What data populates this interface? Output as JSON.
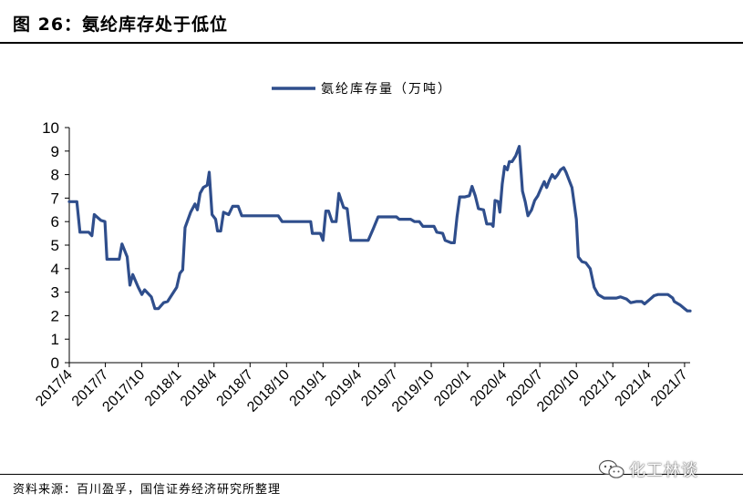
{
  "figure": {
    "title": "图 26：氨纶库存处于低位",
    "source": "资料来源：百川盈孚，国信证券经济研究所整理",
    "watermark_text": "化工林谈",
    "watermark_icon": "wechat-icon"
  },
  "chart_data": {
    "type": "line",
    "title": "",
    "xlabel": "",
    "ylabel": "",
    "ylim": [
      0,
      10
    ],
    "yticks": [
      "0",
      "1",
      "2",
      "3",
      "4",
      "5",
      "6",
      "7",
      "8",
      "9",
      "10"
    ],
    "xticks": [
      "2017/4",
      "2017/7",
      "2017/10",
      "2018/1",
      "2018/4",
      "2018/7",
      "2018/10",
      "2019/1",
      "2019/4",
      "2019/7",
      "2019/10",
      "2020/1",
      "2020/4",
      "2020/7",
      "2020/10",
      "2021/1",
      "2021/4",
      "2021/7"
    ],
    "grid": false,
    "legend_position": "top-center",
    "color": "#2f4e8c",
    "series": [
      {
        "name": "氨纶库存量（万吨）",
        "points": [
          [
            "2017-04-01",
            6.85
          ],
          [
            "2017-04-20",
            6.85
          ],
          [
            "2017-04-28",
            5.55
          ],
          [
            "2017-05-20",
            5.55
          ],
          [
            "2017-05-28",
            5.4
          ],
          [
            "2017-06-03",
            6.3
          ],
          [
            "2017-06-20",
            6.05
          ],
          [
            "2017-06-30",
            6.0
          ],
          [
            "2017-07-05",
            4.4
          ],
          [
            "2017-07-25",
            4.4
          ],
          [
            "2017-08-05",
            4.4
          ],
          [
            "2017-08-12",
            5.05
          ],
          [
            "2017-08-25",
            4.5
          ],
          [
            "2017-09-01",
            3.3
          ],
          [
            "2017-09-08",
            3.75
          ],
          [
            "2017-09-22",
            3.2
          ],
          [
            "2017-10-01",
            2.9
          ],
          [
            "2017-10-08",
            3.1
          ],
          [
            "2017-10-25",
            2.8
          ],
          [
            "2017-11-03",
            2.3
          ],
          [
            "2017-11-12",
            2.3
          ],
          [
            "2017-11-25",
            2.55
          ],
          [
            "2017-12-05",
            2.6
          ],
          [
            "2017-12-20",
            3.0
          ],
          [
            "2017-12-28",
            3.2
          ],
          [
            "2018-01-05",
            3.8
          ],
          [
            "2018-01-12",
            3.95
          ],
          [
            "2018-01-18",
            5.75
          ],
          [
            "2018-02-01",
            6.4
          ],
          [
            "2018-02-12",
            6.75
          ],
          [
            "2018-02-18",
            6.5
          ],
          [
            "2018-02-25",
            7.2
          ],
          [
            "2018-03-05",
            7.45
          ],
          [
            "2018-03-15",
            7.55
          ],
          [
            "2018-03-20",
            8.1
          ],
          [
            "2018-03-27",
            6.3
          ],
          [
            "2018-04-05",
            6.1
          ],
          [
            "2018-04-10",
            5.6
          ],
          [
            "2018-04-18",
            5.6
          ],
          [
            "2018-04-25",
            6.4
          ],
          [
            "2018-05-08",
            6.3
          ],
          [
            "2018-05-18",
            6.65
          ],
          [
            "2018-06-01",
            6.65
          ],
          [
            "2018-06-10",
            6.25
          ],
          [
            "2018-07-01",
            6.25
          ],
          [
            "2018-08-01",
            6.25
          ],
          [
            "2018-09-10",
            6.25
          ],
          [
            "2018-09-20",
            6.0
          ],
          [
            "2018-10-15",
            6.0
          ],
          [
            "2018-11-20",
            6.0
          ],
          [
            "2018-12-01",
            6.0
          ],
          [
            "2018-12-05",
            5.5
          ],
          [
            "2018-12-25",
            5.5
          ],
          [
            "2019-01-01",
            5.2
          ],
          [
            "2019-01-08",
            6.45
          ],
          [
            "2019-01-15",
            6.45
          ],
          [
            "2019-01-24",
            6.0
          ],
          [
            "2019-02-03",
            6.0
          ],
          [
            "2019-02-10",
            7.2
          ],
          [
            "2019-02-22",
            6.6
          ],
          [
            "2019-03-03",
            6.55
          ],
          [
            "2019-03-12",
            5.2
          ],
          [
            "2019-04-20",
            5.2
          ],
          [
            "2019-04-25",
            5.2
          ],
          [
            "2019-05-08",
            5.7
          ],
          [
            "2019-05-20",
            6.2
          ],
          [
            "2019-06-05",
            6.2
          ],
          [
            "2019-06-25",
            6.2
          ],
          [
            "2019-07-05",
            6.2
          ],
          [
            "2019-07-12",
            6.1
          ],
          [
            "2019-07-31",
            6.1
          ],
          [
            "2019-08-10",
            6.1
          ],
          [
            "2019-08-20",
            6.0
          ],
          [
            "2019-09-01",
            6.0
          ],
          [
            "2019-09-10",
            5.8
          ],
          [
            "2019-10-08",
            5.8
          ],
          [
            "2019-10-15",
            5.55
          ],
          [
            "2019-10-30",
            5.5
          ],
          [
            "2019-11-05",
            5.2
          ],
          [
            "2019-11-20",
            5.1
          ],
          [
            "2019-11-28",
            5.1
          ],
          [
            "2019-12-05",
            6.2
          ],
          [
            "2019-12-12",
            7.05
          ],
          [
            "2019-12-25",
            7.05
          ],
          [
            "2020-01-05",
            7.1
          ],
          [
            "2020-01-12",
            7.5
          ],
          [
            "2020-01-20",
            7.1
          ],
          [
            "2020-01-28",
            6.55
          ],
          [
            "2020-02-10",
            6.5
          ],
          [
            "2020-02-18",
            5.9
          ],
          [
            "2020-03-01",
            5.9
          ],
          [
            "2020-03-05",
            5.8
          ],
          [
            "2020-03-10",
            6.9
          ],
          [
            "2020-03-18",
            6.85
          ],
          [
            "2020-03-22",
            6.4
          ],
          [
            "2020-03-28",
            7.6
          ],
          [
            "2020-04-03",
            8.35
          ],
          [
            "2020-04-10",
            8.2
          ],
          [
            "2020-04-15",
            8.55
          ],
          [
            "2020-04-22",
            8.55
          ],
          [
            "2020-05-01",
            8.8
          ],
          [
            "2020-05-10",
            9.2
          ],
          [
            "2020-05-18",
            7.3
          ],
          [
            "2020-05-25",
            6.85
          ],
          [
            "2020-06-01",
            6.25
          ],
          [
            "2020-06-10",
            6.5
          ],
          [
            "2020-06-18",
            6.9
          ],
          [
            "2020-06-26",
            7.1
          ],
          [
            "2020-07-05",
            7.45
          ],
          [
            "2020-07-12",
            7.7
          ],
          [
            "2020-07-18",
            7.45
          ],
          [
            "2020-07-25",
            7.75
          ],
          [
            "2020-08-01",
            8.0
          ],
          [
            "2020-08-08",
            7.85
          ],
          [
            "2020-08-15",
            8.0
          ],
          [
            "2020-08-22",
            8.2
          ],
          [
            "2020-08-30",
            8.3
          ],
          [
            "2020-09-05",
            8.1
          ],
          [
            "2020-09-12",
            7.8
          ],
          [
            "2020-09-20",
            7.45
          ],
          [
            "2020-10-01",
            6.1
          ],
          [
            "2020-10-06",
            4.5
          ],
          [
            "2020-10-15",
            4.3
          ],
          [
            "2020-10-25",
            4.25
          ],
          [
            "2020-11-05",
            4.0
          ],
          [
            "2020-11-15",
            3.2
          ],
          [
            "2020-11-25",
            2.9
          ],
          [
            "2020-12-10",
            2.75
          ],
          [
            "2020-12-25",
            2.75
          ],
          [
            "2021-01-10",
            2.75
          ],
          [
            "2021-01-20",
            2.8
          ],
          [
            "2021-02-05",
            2.7
          ],
          [
            "2021-02-15",
            2.55
          ],
          [
            "2021-03-01",
            2.6
          ],
          [
            "2021-03-15",
            2.6
          ],
          [
            "2021-03-22",
            2.5
          ],
          [
            "2021-04-05",
            2.7
          ],
          [
            "2021-04-15",
            2.85
          ],
          [
            "2021-04-25",
            2.9
          ],
          [
            "2021-05-20",
            2.9
          ],
          [
            "2021-06-01",
            2.75
          ],
          [
            "2021-06-05",
            2.6
          ],
          [
            "2021-06-20",
            2.45
          ],
          [
            "2021-07-01",
            2.3
          ],
          [
            "2021-07-08",
            2.2
          ],
          [
            "2021-07-15",
            2.2
          ]
        ]
      }
    ]
  }
}
